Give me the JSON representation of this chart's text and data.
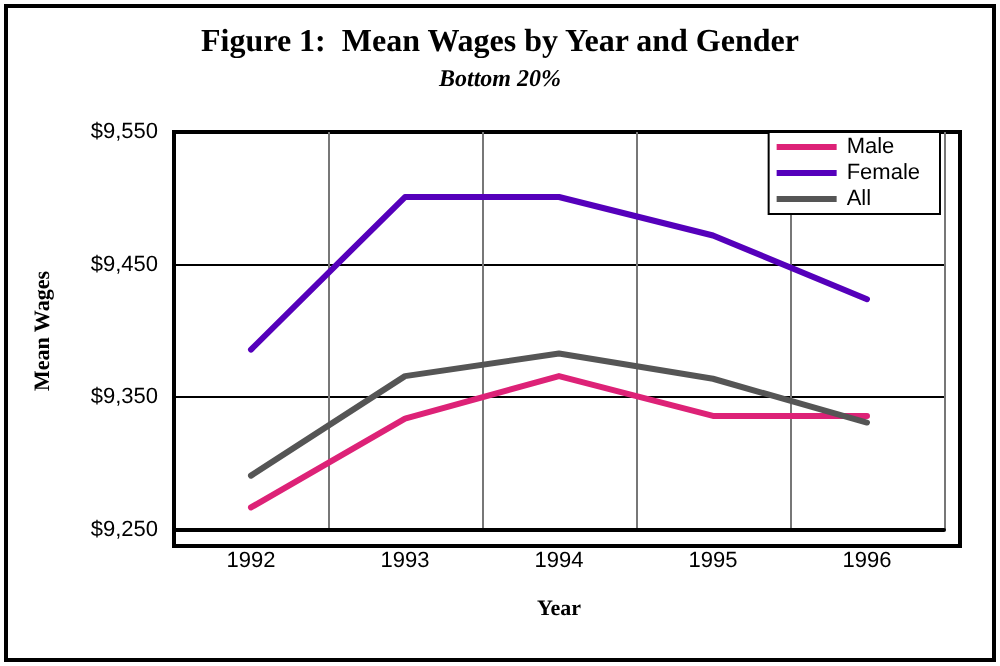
{
  "chart_data": {
    "type": "line",
    "title": "Figure 1:  Mean Wages by Year and Gender",
    "subtitle": "Bottom 20%",
    "xlabel": "Year",
    "ylabel": "Mean Wages",
    "categories": [
      "1992",
      "1993",
      "1994",
      "1995",
      "1996"
    ],
    "series": [
      {
        "name": "Male",
        "color": "#dd2277",
        "values": [
          9267,
          9334,
          9366,
          9336,
          9336
        ]
      },
      {
        "name": "Female",
        "color": "#5500bb",
        "values": [
          9386,
          9501,
          9501,
          9472,
          9424
        ]
      },
      {
        "name": "All",
        "color": "#555555",
        "values": [
          9291,
          9366,
          9383,
          9364,
          9331
        ]
      }
    ],
    "ylim": [
      9250,
      9550
    ],
    "yticks": [
      {
        "value": 9250,
        "label": "$9,250"
      },
      {
        "value": 9350,
        "label": "$9,350"
      },
      {
        "value": 9450,
        "label": "$9,450"
      },
      {
        "value": 9550,
        "label": "$9,550"
      }
    ],
    "grid": true,
    "legend": "top right",
    "marker": "none",
    "line_style": "solid"
  }
}
